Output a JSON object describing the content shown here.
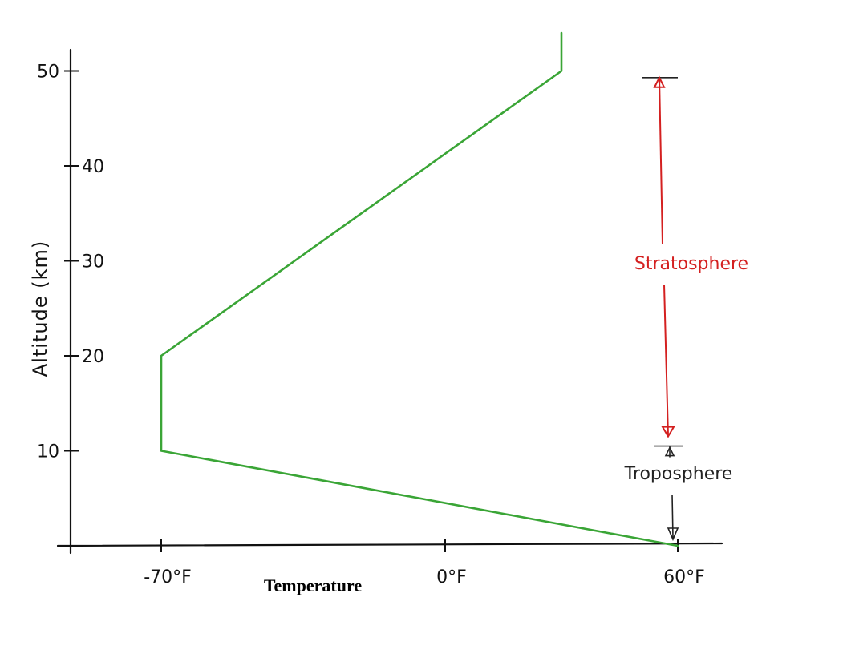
{
  "chart_data": {
    "type": "line",
    "title": "",
    "xlabel": "Temperature",
    "ylabel": "Altitude (km)",
    "xlim": [
      -80,
      70
    ],
    "ylim": [
      0,
      54
    ],
    "x_ticks": [
      {
        "value": -70,
        "label": "-70°F"
      },
      {
        "value": 0,
        "label": "0°F"
      },
      {
        "value": 60,
        "label": "60°F"
      }
    ],
    "y_ticks": [
      {
        "value": 10,
        "label": "10"
      },
      {
        "value": 20,
        "label": "20"
      },
      {
        "value": 30,
        "label": "30"
      },
      {
        "value": 40,
        "label": "40"
      },
      {
        "value": 50,
        "label": "50"
      }
    ],
    "series": [
      {
        "color": "#3aa536",
        "points": [
          {
            "x": 60,
            "y": 0
          },
          {
            "x": -70,
            "y": 10
          },
          {
            "x": -70,
            "y": 20
          },
          {
            "x": 30,
            "y": 50
          },
          {
            "x": 30,
            "y": 54
          }
        ]
      }
    ],
    "annotations": [
      {
        "label": "Stratosphere",
        "from": 10.5,
        "to": 49.3,
        "color": "#d42020"
      },
      {
        "label": "Troposphere",
        "from": 0,
        "to": 10.5,
        "color": "#222222"
      }
    ],
    "grid": false,
    "legend": "none"
  }
}
